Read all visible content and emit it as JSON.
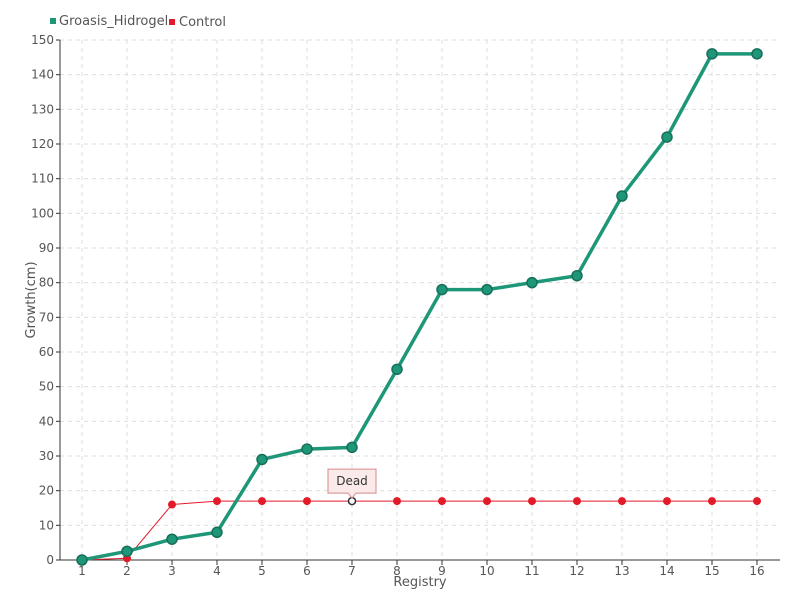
{
  "chart_data": {
    "type": "line",
    "title": "",
    "xlabel": "Registry",
    "ylabel": "Growth(cm)",
    "categories": [
      "1",
      "2",
      "3",
      "4",
      "5",
      "6",
      "7",
      "8",
      "9",
      "10",
      "11",
      "12",
      "13",
      "14",
      "15",
      "16"
    ],
    "ylim": [
      0,
      150
    ],
    "yticks": [
      0,
      10,
      20,
      30,
      40,
      50,
      60,
      70,
      80,
      90,
      100,
      110,
      120,
      130,
      140,
      150
    ],
    "grid": true,
    "legend_position": "top-left",
    "series": [
      {
        "name": "Groasis_Hidrogel",
        "color": "#1e9678",
        "values": [
          0,
          2.5,
          6,
          8,
          29,
          32,
          32.5,
          55,
          78,
          78,
          80,
          82,
          105,
          122,
          146,
          146
        ]
      },
      {
        "name": "Control",
        "color": "#e31a2a",
        "values": [
          0,
          0.5,
          16,
          17,
          17,
          17,
          17,
          17,
          17,
          17,
          17,
          17,
          17,
          17,
          17,
          17
        ]
      }
    ],
    "annotations": [
      {
        "text": "Dead",
        "series": "Control",
        "category": "7",
        "value": 17
      }
    ]
  }
}
